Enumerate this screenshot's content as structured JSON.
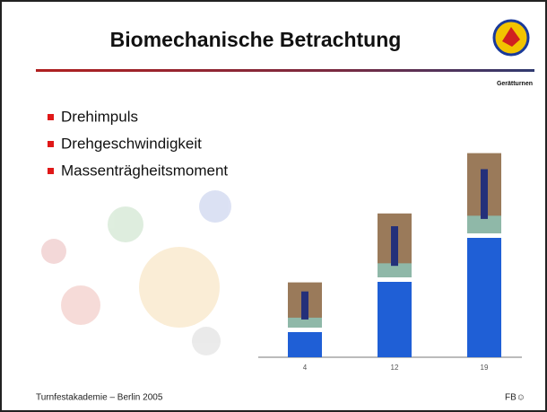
{
  "header": {
    "title": "Biomechanische Betrachtung",
    "subtitle": "Gerätturnen"
  },
  "bullets": [
    "Drehimpuls",
    "Drehgeschwindigkeit",
    "Massenträgheitsmoment"
  ],
  "chart_data": {
    "type": "bar",
    "values": [
      4,
      12,
      19
    ],
    "color": "#1f5fd6"
  },
  "footer": {
    "left": "Turnfestakademie – Berlin 2005",
    "right": "FB☺"
  }
}
